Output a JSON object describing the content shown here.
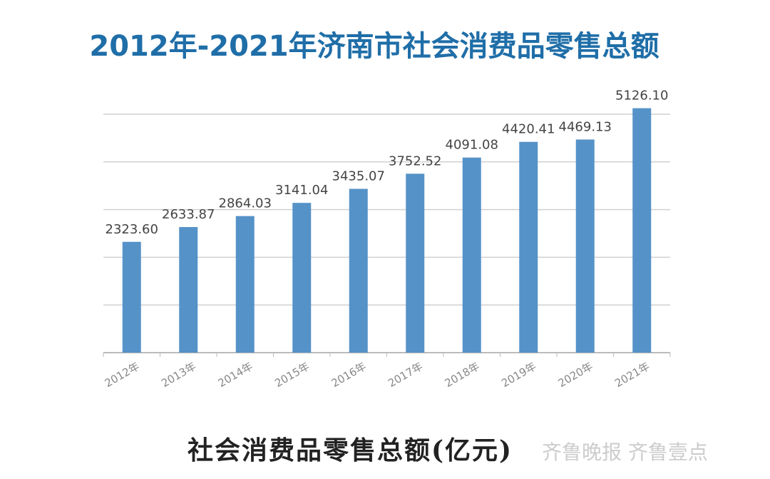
{
  "chart_data": {
    "type": "bar",
    "title": "2012年-2021年济南市社会消费品零售总额",
    "xlabel": "社会消费品零售总额(亿元)",
    "ylabel": "",
    "categories": [
      "2012年",
      "2013年",
      "2014年",
      "2015年",
      "2016年",
      "2017年",
      "2018年",
      "2019年",
      "2020年",
      "2021年"
    ],
    "values": [
      2323.6,
      2633.87,
      2864.03,
      3141.04,
      3435.07,
      3752.52,
      4091.08,
      4420.41,
      4469.13,
      5126.1
    ],
    "labels": [
      "2323.60",
      "2633.87",
      "2864.03",
      "3141.04",
      "3435.07",
      "3752.52",
      "4091.08",
      "4420.41",
      "4469.13",
      "5126.10"
    ],
    "ylim": [
      0,
      5000
    ],
    "grid": true,
    "bar_color": "#5592c8",
    "title_color": "#1f6ea8"
  },
  "watermark": "齐鲁晚报 齐鲁壹点"
}
